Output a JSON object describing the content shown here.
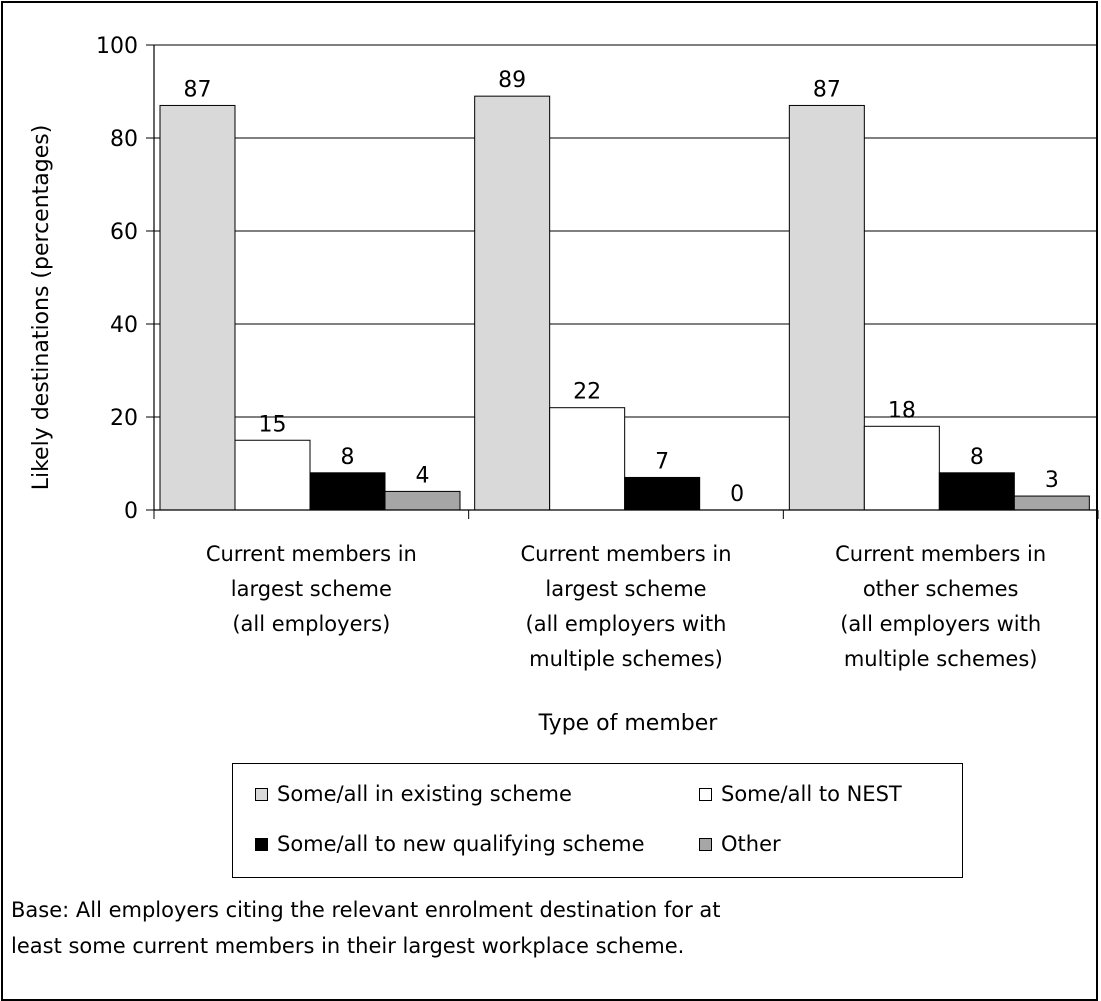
{
  "chart_data": {
    "type": "bar",
    "xlabel": "Type of member",
    "ylabel": "Likely destinations (percentages)",
    "ylim": [
      0,
      100
    ],
    "yticks": [
      0,
      20,
      40,
      60,
      80,
      100
    ],
    "grid": true,
    "categories": [
      [
        "Current members in",
        "largest scheme",
        "(all employers)"
      ],
      [
        "Current members in",
        "largest scheme",
        "(all employers with",
        "multiple schemes)"
      ],
      [
        "Current members in",
        "other schemes",
        "(all employers with",
        "multiple schemes)"
      ]
    ],
    "series": [
      {
        "name": "Some/all in existing scheme",
        "color": "#d9d9d9",
        "values": [
          87,
          89,
          87
        ]
      },
      {
        "name": "Some/all to NEST",
        "color": "#ffffff",
        "values": [
          15,
          22,
          18
        ]
      },
      {
        "name": "Some/all to new qualifying scheme",
        "color": "#000000",
        "values": [
          8,
          7,
          8
        ]
      },
      {
        "name": "Other",
        "color": "#a6a6a6",
        "values": [
          4,
          0,
          3
        ]
      }
    ],
    "legend_position": "bottom"
  },
  "note": {
    "line1": "Base: All employers citing the relevant enrolment destination for at",
    "line2": "least some current members in their largest workplace scheme."
  }
}
